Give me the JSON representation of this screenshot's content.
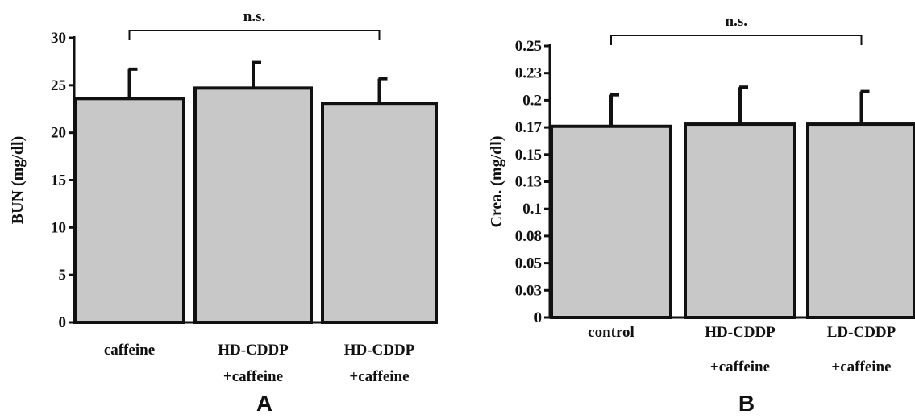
{
  "chart_data": [
    {
      "type": "bar",
      "panel_label": "A",
      "ylabel": "BUN (mg/dl)",
      "ylim": [
        0,
        30
      ],
      "yticks": [
        "0",
        "5",
        "10",
        "15",
        "20",
        "25",
        "30"
      ],
      "categories": [
        {
          "lines": [
            "caffeine"
          ]
        },
        {
          "lines": [
            "HD-CDDP",
            "+caffeine"
          ]
        },
        {
          "lines": [
            "HD-CDDP",
            "+caffeine"
          ]
        }
      ],
      "values": [
        23.6,
        24.7,
        23.1
      ],
      "errors": [
        3.1,
        2.7,
        2.6
      ],
      "annotation": {
        "text": "n.s.",
        "from": 0,
        "to": 2
      }
    },
    {
      "type": "bar",
      "panel_label": "B",
      "ylabel": "Crea. (mg/dl)",
      "ylim": [
        0,
        0.25
      ],
      "yticks": [
        "0",
        "0.03",
        "0.05",
        "0.08",
        "0.1",
        "0.13",
        "0.15",
        "0.17",
        "0.2",
        "0.23",
        "0.25"
      ],
      "categories": [
        {
          "lines": [
            "control"
          ]
        },
        {
          "lines": [
            "HD-CDDP",
            "+caffeine"
          ]
        },
        {
          "lines": [
            "LD-CDDP",
            "+caffeine"
          ]
        }
      ],
      "values": [
        0.176,
        0.178,
        0.178
      ],
      "errors": [
        0.029,
        0.034,
        0.03
      ],
      "annotation": {
        "text": "n.s.",
        "from": 0,
        "to": 2
      }
    }
  ]
}
